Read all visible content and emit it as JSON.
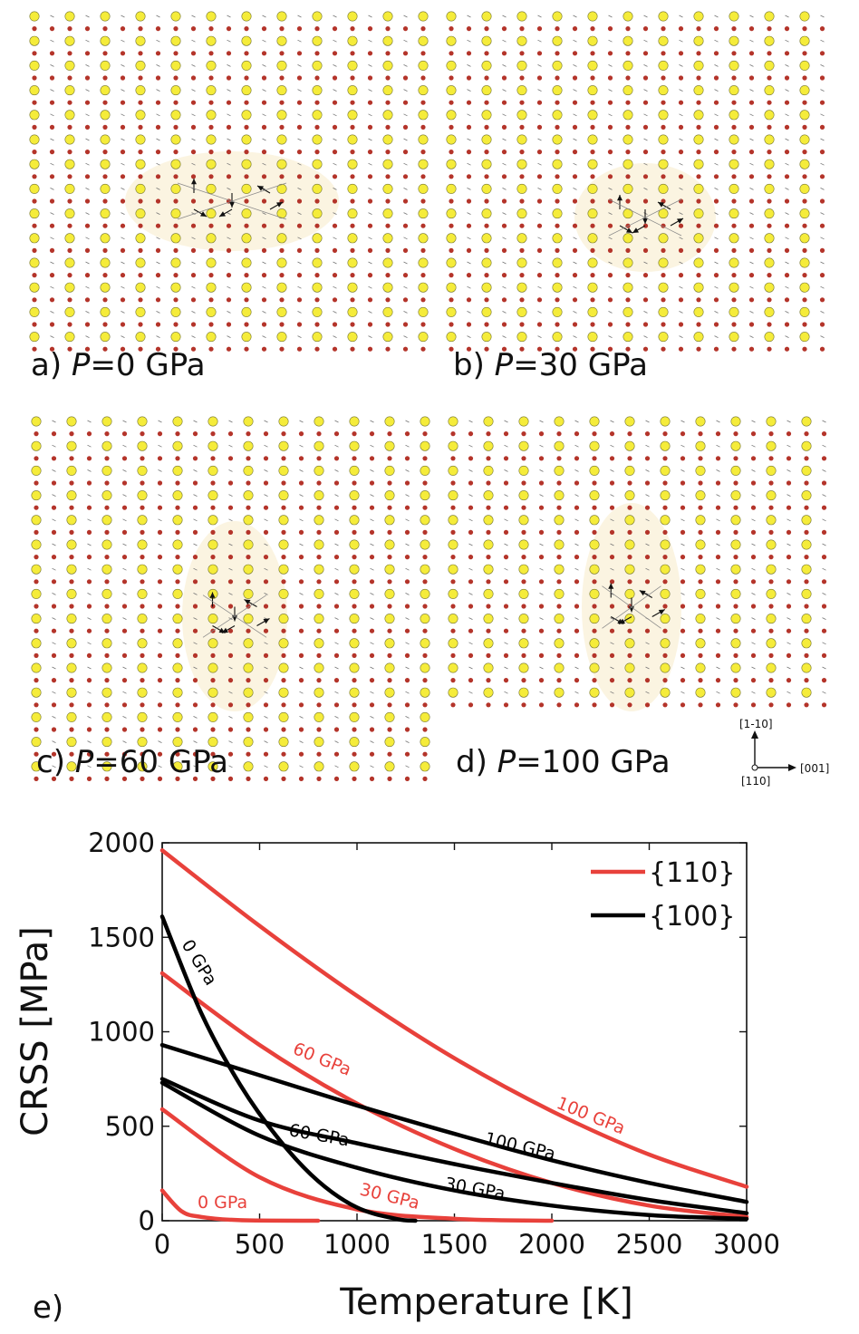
{
  "panels": [
    {
      "id": "a",
      "letter": "a)",
      "var": "P",
      "value": "=0 GPa"
    },
    {
      "id": "b",
      "letter": "b)",
      "var": "P",
      "value": "=30 GPa"
    },
    {
      "id": "c",
      "letter": "c)",
      "var": "P",
      "value": "=60 GPa"
    },
    {
      "id": "d",
      "letter": "d)",
      "var": "P",
      "value": "=100 GPa"
    }
  ],
  "orientation": {
    "up": "[1-10]",
    "right": "[001]",
    "origin": "[110]"
  },
  "colors": {
    "red": "#e8413b",
    "black": "#000000",
    "yellow": "#f5ec3a",
    "dark_red": "#b4342a",
    "halo": "#faf2dc"
  },
  "chart_data": {
    "type": "line",
    "panel_label": "e)",
    "xlabel": "Temperature [K]",
    "ylabel": "CRSS [MPa]",
    "xlim": [
      0,
      3000
    ],
    "ylim": [
      0,
      2000
    ],
    "xticks": [
      "0",
      "500",
      "1000",
      "1500",
      "2000",
      "2500",
      "3000"
    ],
    "yticks": [
      "0",
      "500",
      "1000",
      "1500",
      "2000"
    ],
    "legend": [
      {
        "label": "{110}",
        "color": "#e8413b"
      },
      {
        "label": "{100}",
        "color": "#000000"
      }
    ],
    "series": [
      {
        "name": "{110} 0 GPa",
        "family": "{110}",
        "label": "0 GPa",
        "color": "#e8413b",
        "x": [
          0,
          100,
          200,
          400,
          800
        ],
        "y": [
          160,
          50,
          20,
          3,
          0
        ]
      },
      {
        "name": "{110} 30 GPa",
        "family": "{110}",
        "label": "30 GPa",
        "color": "#e8413b",
        "x": [
          0,
          500,
          1000,
          1500,
          2000
        ],
        "y": [
          590,
          230,
          60,
          10,
          0
        ]
      },
      {
        "name": "{110} 60 GPa",
        "family": "{110}",
        "label": "60 GPa",
        "color": "#e8413b",
        "x": [
          0,
          500,
          1000,
          1500,
          2000,
          2500,
          3000
        ],
        "y": [
          1310,
          930,
          620,
          380,
          200,
          80,
          20
        ]
      },
      {
        "name": "{110} 100 GPa",
        "family": "{110}",
        "label": "100 GPa",
        "color": "#e8413b",
        "x": [
          0,
          500,
          1000,
          1500,
          2000,
          2500,
          3000
        ],
        "y": [
          1960,
          1560,
          1190,
          860,
          580,
          350,
          180
        ]
      },
      {
        "name": "{100} 0 GPa",
        "family": "{100}",
        "label": "0 GPa",
        "color": "#000000",
        "x": [
          0,
          200,
          400,
          600,
          800,
          1000,
          1200,
          1300
        ],
        "y": [
          1610,
          1100,
          720,
          430,
          210,
          70,
          10,
          0
        ]
      },
      {
        "name": "{100} 30 GPa",
        "family": "{100}",
        "label": "30 GPa",
        "color": "#000000",
        "x": [
          0,
          500,
          1000,
          1500,
          2000,
          2500,
          3000
        ],
        "y": [
          730,
          450,
          280,
          160,
          80,
          30,
          10
        ]
      },
      {
        "name": "{100} 60 GPa",
        "family": "{100}",
        "label": "60 GPa",
        "color": "#000000",
        "x": [
          0,
          500,
          1000,
          1500,
          2000,
          2500,
          3000
        ],
        "y": [
          750,
          530,
          410,
          300,
          200,
          110,
          40
        ]
      },
      {
        "name": "{100} 100 GPa",
        "family": "{100}",
        "label": "100 GPa",
        "color": "#000000",
        "x": [
          0,
          500,
          1000,
          1500,
          2000,
          2500,
          3000
        ],
        "y": [
          930,
          770,
          610,
          460,
          320,
          200,
          100
        ]
      }
    ]
  }
}
